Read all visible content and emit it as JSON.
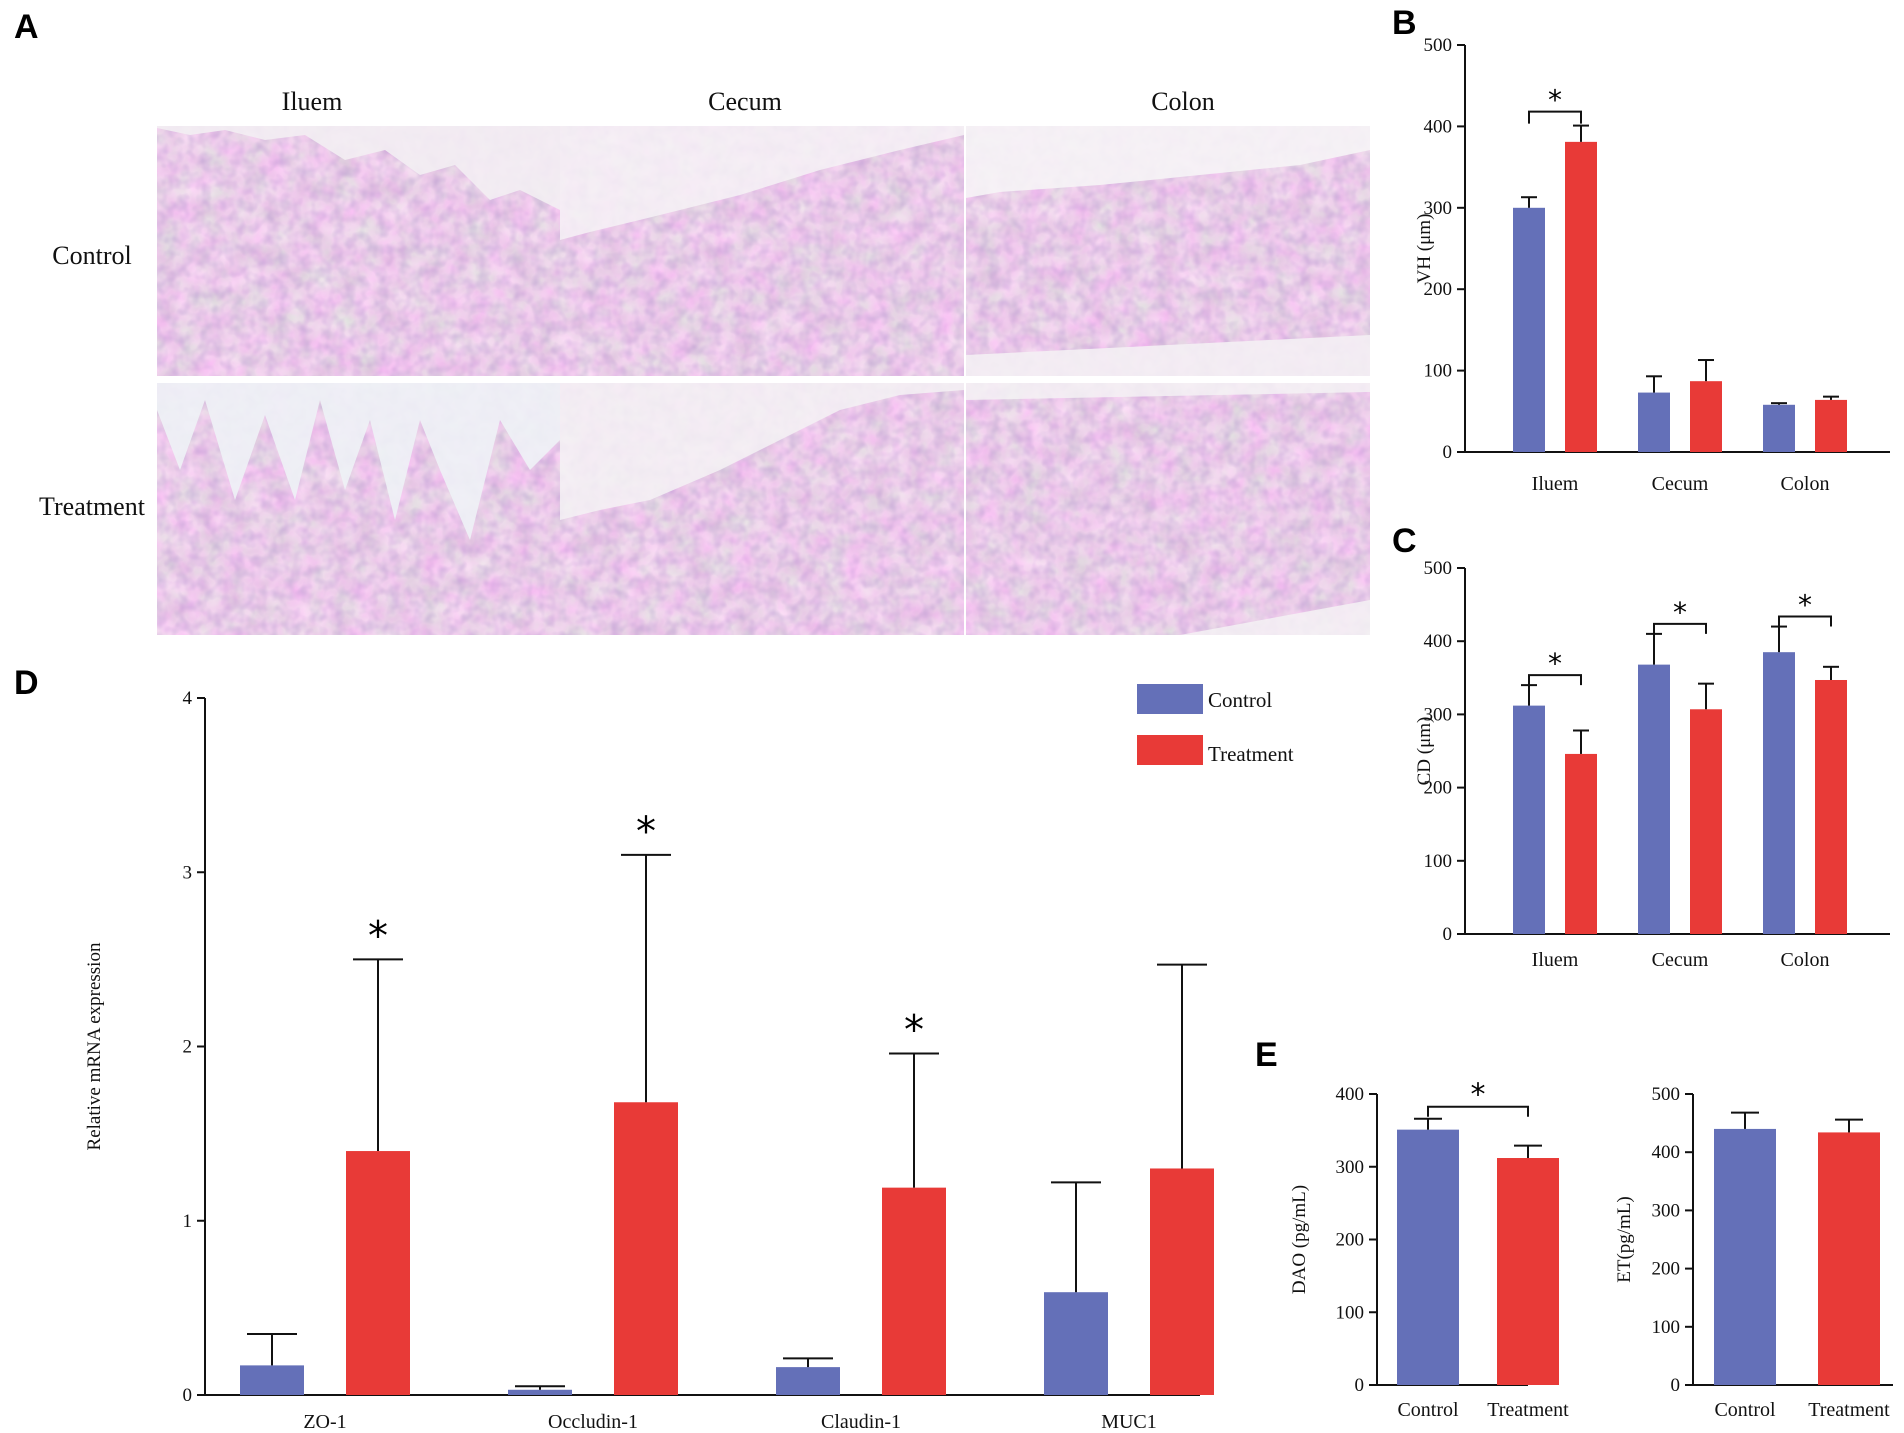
{
  "colors": {
    "control": "#6470b8",
    "treatment": "#e83a37",
    "axis": "#111111"
  },
  "panel_a": {
    "label": "A",
    "columns": [
      "Iluem",
      "Cecum",
      "Colon"
    ],
    "rows": [
      "Control",
      "Treatment"
    ]
  },
  "legend": {
    "control": "Control",
    "treatment": "Treatment"
  },
  "chart_data": [
    {
      "id": "B",
      "label": "B",
      "type": "bar",
      "categories": [
        "Iluem",
        "Cecum",
        "Colon"
      ],
      "series": [
        {
          "name": "Control",
          "values": [
            300,
            73,
            58
          ],
          "errors": [
            13,
            20,
            2
          ]
        },
        {
          "name": "Treatment",
          "values": [
            381,
            87,
            64
          ],
          "errors": [
            20,
            26,
            4
          ]
        }
      ],
      "ylabel": "VH (μm)",
      "ylim": [
        0,
        500
      ],
      "yticks": [
        0,
        100,
        200,
        300,
        400,
        500
      ],
      "significance": [
        0
      ],
      "star": "*"
    },
    {
      "id": "C",
      "label": "C",
      "type": "bar",
      "categories": [
        "Iluem",
        "Cecum",
        "Colon"
      ],
      "series": [
        {
          "name": "Control",
          "values": [
            312,
            368,
            385
          ],
          "errors": [
            28,
            42,
            35
          ]
        },
        {
          "name": "Treatment",
          "values": [
            246,
            307,
            347
          ],
          "errors": [
            32,
            35,
            18
          ]
        }
      ],
      "ylabel": "CD (μm)",
      "ylim": [
        0,
        500
      ],
      "yticks": [
        0,
        100,
        200,
        300,
        400,
        500
      ],
      "significance": [
        0,
        1,
        2
      ],
      "star": "*"
    },
    {
      "id": "D",
      "label": "D",
      "type": "bar",
      "categories": [
        "ZO-1",
        "Occludin-1",
        "Claudin-1",
        "MUC1"
      ],
      "series": [
        {
          "name": "Control",
          "values": [
            0.17,
            0.03,
            0.16,
            0.59
          ],
          "errors": [
            0.18,
            0.02,
            0.05,
            0.63
          ]
        },
        {
          "name": "Treatment",
          "values": [
            1.4,
            1.68,
            1.19,
            1.3
          ],
          "errors": [
            1.1,
            1.42,
            0.77,
            1.17
          ]
        }
      ],
      "ylabel": "Relative mRNA expression",
      "ylim": [
        0,
        4
      ],
      "yticks": [
        0,
        1,
        2,
        3,
        4
      ],
      "significance": [
        0,
        1,
        2
      ],
      "star": "*"
    },
    {
      "id": "E1",
      "label": "E",
      "type": "bar",
      "categories": [
        "Control",
        "Treatment"
      ],
      "values": [
        351,
        312
      ],
      "errors": [
        15,
        17
      ],
      "ylabel": "DAO (pg/mL)",
      "ylim": [
        0,
        400
      ],
      "yticks": [
        0,
        100,
        200,
        300,
        400
      ],
      "significance": true,
      "star": "*"
    },
    {
      "id": "E2",
      "label": "",
      "type": "bar",
      "categories": [
        "Control",
        "Treatment"
      ],
      "values": [
        440,
        434
      ],
      "errors": [
        28,
        22
      ],
      "ylabel": "ET(pg/mL)",
      "ylim": [
        0,
        500
      ],
      "yticks": [
        0,
        100,
        200,
        300,
        400,
        500
      ],
      "significance": false
    }
  ]
}
